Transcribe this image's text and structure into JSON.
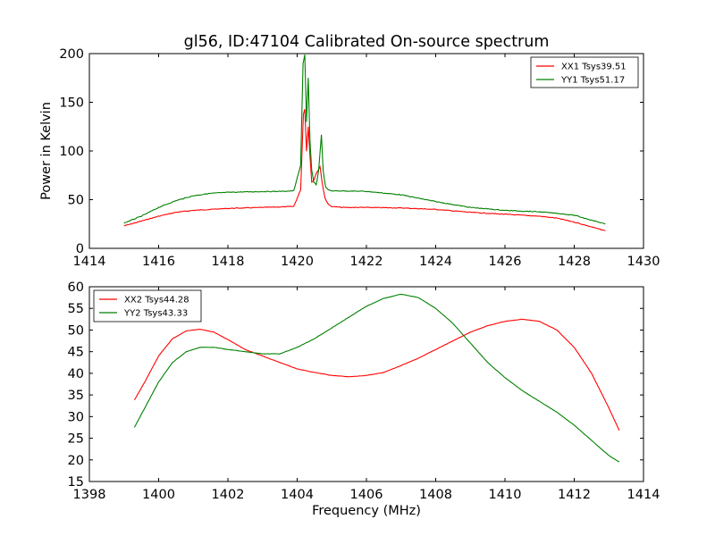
{
  "chart_data": [
    {
      "type": "line",
      "title": "gl56, ID:47104 Calibrated On-source spectrum",
      "xlabel": "",
      "ylabel": "Power in Kelvin",
      "xlim": [
        1414,
        1430
      ],
      "ylim": [
        0,
        200
      ],
      "xticks": [
        1414,
        1416,
        1418,
        1420,
        1422,
        1424,
        1426,
        1428,
        1430
      ],
      "yticks": [
        0,
        50,
        100,
        150,
        200
      ],
      "grid": false,
      "legend_position": "top-right",
      "series": [
        {
          "name": "XX1 Tsys39.51",
          "color": "#ff0000",
          "x": [
            1415.0,
            1415.5,
            1416.0,
            1416.5,
            1417.0,
            1417.5,
            1418.0,
            1418.5,
            1419.0,
            1419.5,
            1419.9,
            1420.1,
            1420.18,
            1420.22,
            1420.27,
            1420.32,
            1420.37,
            1420.42,
            1420.48,
            1420.53,
            1420.6,
            1420.66,
            1420.72,
            1420.8,
            1420.9,
            1421.0,
            1421.3,
            1422.0,
            1423.0,
            1424.0,
            1425.0,
            1426.0,
            1427.0,
            1427.5,
            1428.0,
            1428.5,
            1428.9
          ],
          "y": [
            23,
            28,
            33,
            37,
            39,
            40,
            41,
            41.5,
            42,
            42.5,
            43,
            60,
            138,
            143,
            100,
            125,
            95,
            68,
            70,
            75,
            80,
            84,
            68,
            52,
            45,
            43,
            42,
            42,
            41.5,
            40,
            37,
            35,
            33,
            31,
            27,
            22,
            18
          ]
        },
        {
          "name": "YY1 Tsys51.17",
          "color": "#008000",
          "x": [
            1415.0,
            1415.5,
            1416.0,
            1416.5,
            1417.0,
            1417.5,
            1418.0,
            1418.5,
            1419.0,
            1419.5,
            1419.9,
            1420.1,
            1420.17,
            1420.22,
            1420.27,
            1420.32,
            1420.37,
            1420.42,
            1420.48,
            1420.55,
            1420.62,
            1420.7,
            1420.75,
            1420.82,
            1420.9,
            1421.0,
            1421.3,
            1422.0,
            1423.0,
            1424.0,
            1425.0,
            1426.0,
            1427.0,
            1427.5,
            1428.0,
            1428.5,
            1428.9
          ],
          "y": [
            26,
            33,
            42,
            49,
            54,
            56.5,
            57.5,
            58,
            58.3,
            58.5,
            59,
            85,
            190,
            199,
            130,
            175,
            110,
            80,
            68,
            65,
            80,
            117,
            80,
            63,
            60,
            59,
            59,
            58.5,
            55,
            48,
            42,
            39,
            37.5,
            36,
            34,
            29,
            25
          ]
        }
      ]
    },
    {
      "type": "line",
      "title": "",
      "xlabel": "Frequency (MHz)",
      "ylabel": "",
      "xlim": [
        1398,
        1414
      ],
      "ylim": [
        15,
        60
      ],
      "xticks": [
        1398,
        1400,
        1402,
        1404,
        1406,
        1408,
        1410,
        1412,
        1414
      ],
      "yticks": [
        15,
        20,
        25,
        30,
        35,
        40,
        45,
        50,
        55,
        60
      ],
      "grid": false,
      "legend_position": "top-left",
      "series": [
        {
          "name": "XX2 Tsys44.28",
          "color": "#ff0000",
          "x": [
            1399.3,
            1399.6,
            1400.0,
            1400.4,
            1400.8,
            1401.2,
            1401.6,
            1402.0,
            1402.5,
            1403.0,
            1403.5,
            1404.0,
            1404.5,
            1405.0,
            1405.5,
            1406.0,
            1406.5,
            1407.0,
            1407.5,
            1408.0,
            1408.5,
            1409.0,
            1409.5,
            1410.0,
            1410.5,
            1411.0,
            1411.5,
            1412.0,
            1412.5,
            1413.0,
            1413.3
          ],
          "y": [
            33.8,
            38.0,
            44.0,
            48.0,
            49.8,
            50.2,
            49.5,
            47.8,
            45.5,
            44.0,
            42.5,
            41.0,
            40.2,
            39.5,
            39.2,
            39.5,
            40.2,
            41.8,
            43.5,
            45.5,
            47.5,
            49.5,
            51.0,
            52.0,
            52.5,
            52.0,
            50.0,
            46.0,
            40.0,
            32.0,
            26.8
          ]
        },
        {
          "name": "YY2 Tsys43.33",
          "color": "#008000",
          "x": [
            1399.3,
            1399.6,
            1400.0,
            1400.4,
            1400.8,
            1401.2,
            1401.6,
            1402.0,
            1402.5,
            1403.0,
            1403.5,
            1404.0,
            1404.5,
            1405.0,
            1405.5,
            1406.0,
            1406.5,
            1407.0,
            1407.5,
            1408.0,
            1408.5,
            1409.0,
            1409.5,
            1410.0,
            1410.5,
            1411.0,
            1411.5,
            1412.0,
            1412.5,
            1413.0,
            1413.3
          ],
          "y": [
            27.5,
            32.0,
            38.0,
            42.5,
            45.0,
            46.0,
            46.0,
            45.5,
            45.0,
            44.5,
            44.5,
            46.0,
            48.0,
            50.5,
            53.0,
            55.5,
            57.3,
            58.3,
            57.5,
            55.0,
            51.5,
            47.0,
            42.5,
            39.0,
            36.0,
            33.5,
            31.0,
            28.0,
            24.5,
            21.0,
            19.5
          ]
        }
      ]
    }
  ]
}
